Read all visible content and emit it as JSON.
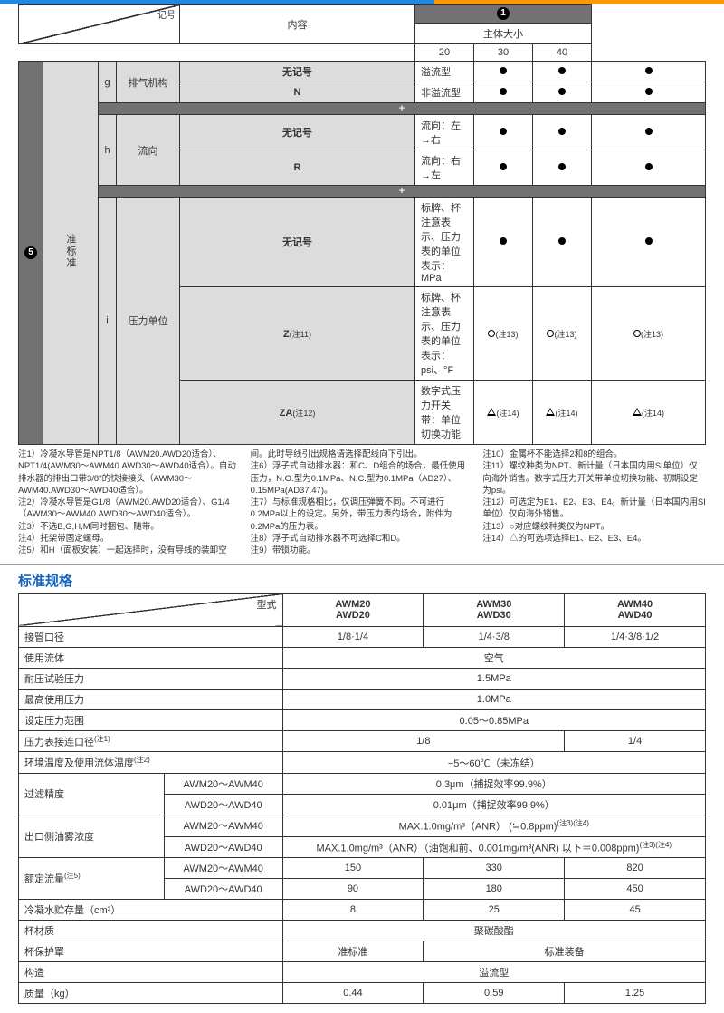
{
  "colors": {
    "accent_blue": "#1565c0",
    "accent_orange": "#ff9800",
    "gray_fill": "#dcdcdc",
    "dark_hdr": "#727272",
    "border": "#333333"
  },
  "top": {
    "diag_labels": {
      "tl": "记号",
      "br": ""
    },
    "group_num": "❶",
    "headers": {
      "content": "内容",
      "body_size": "主体大小",
      "sizes": [
        "20",
        "30",
        "40"
      ]
    },
    "side_num": "❺",
    "side_label": "准标准",
    "rows": [
      {
        "code": "g",
        "name": "排气机构",
        "sub": [
          {
            "k": "无记号",
            "v": "溢流型",
            "m": [
              "dot",
              "dot",
              "dot"
            ]
          },
          {
            "k": "N",
            "v": "非溢流型",
            "m": [
              "dot",
              "dot",
              "dot"
            ]
          }
        ]
      },
      {
        "code": "h",
        "name": "流向",
        "sub": [
          {
            "k": "无记号",
            "v": "流向：左→右",
            "m": [
              "dot",
              "dot",
              "dot"
            ]
          },
          {
            "k": "R",
            "v": "流向：右→左",
            "m": [
              "dot",
              "dot",
              "dot"
            ]
          }
        ]
      },
      {
        "code": "i",
        "name": "压力单位",
        "sub": [
          {
            "k": "无记号",
            "v": "标牌、杯注意表示、压力表的单位表示：MPa",
            "m": [
              "dot",
              "dot",
              "dot"
            ]
          },
          {
            "k": "Z",
            "ks": "(注11)",
            "v": "标牌、杯注意表示、压力表的单位表示：psi、°F",
            "m": [
              "circ",
              "circ",
              "circ"
            ],
            "ms": "(注13)"
          },
          {
            "k": "ZA",
            "ks": "(注12)",
            "v": "数字式压力开关带：单位切换功能",
            "m": [
              "tri",
              "tri",
              "tri"
            ],
            "ms": "(注14)"
          }
        ]
      }
    ]
  },
  "notes": {
    "c1": [
      "注1）冷凝水导管是NPT1/8（AWM20.AWD20适合）、NPT1/4(AWM30～AWM40.AWD30～AWD40适合）。自动排水器的排出口带3/8\"的快接接头（AWM30～AWM40.AWD30～AWD40适合）。",
      "注2）冷凝水导管是G1/8（AWM20.AWD20适合）、G1/4（AWM30～AWM40.AWD30～AWD40适合）。",
      "注3）不选B,G,H,M同时捆包、随带。",
      "注4）托架带固定螺母。",
      "注5）和H（面板安装）一起选择时，没有导线的装卸空"
    ],
    "c2": [
      "间。此时导线引出规格请选择配线向下引出。",
      "注6）浮子式自动排水器：和C、D组合的场合，最低使用压力，N.O.型为0.1MPa、N.C.型为0.1MPa（AD27）、0.15MPa(AD37.47)。",
      "注7）与标准规格相比，仅调压弹簧不同。不可进行0.2MPa以上的设定。另外，带压力表的场合，附件为0.2MPa的压力表。",
      "注8）浮子式自动排水器不可选择C和D。",
      "注9）带锁功能。"
    ],
    "c3": [
      "注10）金属杯不能选择2和8的组合。",
      "注11）螺纹种类为NPT、新计量（日本国内用SI单位）仅向海外销售。数字式压力开关带单位切换功能、初期设定为psi。",
      "注12）可选定为E1、E2、E3、E4。新计量（日本国内用SI单位）仅向海外销售。",
      "注13）○对应螺纹种类仅为NPT。",
      "注14）△的可选项选择E1、E2、E3、E4。"
    ]
  },
  "spec": {
    "title": "标准规格",
    "head_label": "型式",
    "models": [
      {
        "a": "AWM20",
        "b": "AWD20"
      },
      {
        "a": "AWM30",
        "b": "AWD30"
      },
      {
        "a": "AWM40",
        "b": "AWD40"
      }
    ],
    "rows": [
      {
        "l": "接管口径",
        "v": [
          "1/8·1/4",
          "1/4·3/8",
          "1/4·3/8·1/2"
        ]
      },
      {
        "l": "使用流体",
        "span": "空气"
      },
      {
        "l": "耐压试验压力",
        "span": "1.5MPa"
      },
      {
        "l": "最高使用压力",
        "span": "1.0MPa"
      },
      {
        "l": "设定压力范围",
        "span": "0.05～0.85MPa"
      },
      {
        "l": "压力表接连口径",
        "sup": "(注1)",
        "v2": [
          "1/8",
          "1/4"
        ],
        "v2span": [
          2,
          1
        ]
      },
      {
        "l": "环境温度及使用流体温度",
        "sup": "(注2)",
        "span": "−5～60℃（未冻结）"
      },
      {
        "l": "过滤精度",
        "sub": [
          {
            "k": "AWM20～AWM40",
            "span": "0.3μm（捕捉效率99.9%）"
          },
          {
            "k": "AWD20～AWD40",
            "span": "0.01μm（捕捉效率99.9%）"
          }
        ]
      },
      {
        "l": "出口侧油雾浓度",
        "sub": [
          {
            "k": "AWM20～AWM40",
            "span": "MAX.1.0mg/m³（ANR） (≒0.8ppm)",
            "sup": "(注3)(注4)"
          },
          {
            "k": "AWD20～AWD40",
            "span": "MAX.1.0mg/m³（ANR）（油饱和前、0.001mg/m³(ANR) 以下＝0.008ppm)",
            "sup": "(注3)(注4)"
          }
        ]
      },
      {
        "l": "额定流量",
        "sup": "(注5)",
        "sub": [
          {
            "k": "AWM20～AWM40",
            "v": [
              "150",
              "330",
              "820"
            ]
          },
          {
            "k": "AWD20～AWD40",
            "v": [
              "90",
              "180",
              "450"
            ]
          }
        ]
      },
      {
        "l": "冷凝水贮存量（cm³）",
        "v": [
          "8",
          "25",
          "45"
        ]
      },
      {
        "l": "杯材质",
        "span": "聚碳酸酯"
      },
      {
        "l": "杯保护罩",
        "v2": [
          "准标准",
          "标准装备"
        ],
        "v2span": [
          1,
          2
        ]
      },
      {
        "l": "构造",
        "span": "溢流型"
      },
      {
        "l": "质量（kg）",
        "v": [
          "0.44",
          "0.59",
          "1.25"
        ]
      }
    ]
  }
}
